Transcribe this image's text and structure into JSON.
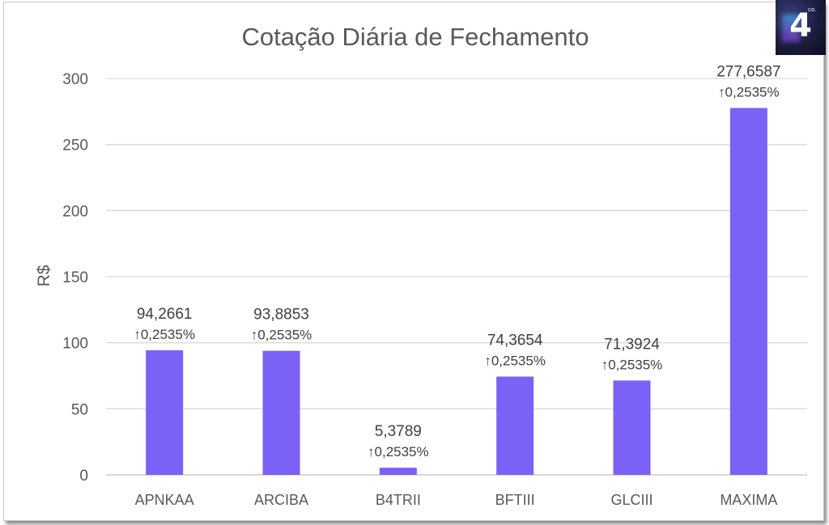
{
  "logo": {
    "digit": "4",
    "small": "co."
  },
  "chart_data": {
    "type": "bar",
    "title": "Cotação Diária de Fechamento",
    "ylabel": "R$",
    "xlabel": "",
    "ylim": [
      0,
      300
    ],
    "yticks": [
      "0",
      "50",
      "100",
      "150",
      "200",
      "250",
      "300"
    ],
    "grid": true,
    "bar_color": "#7b61f5",
    "categories": [
      "APNKAA",
      "ARCIBA",
      "B4TRII",
      "BFTIII",
      "GLCIII",
      "MAXIMA"
    ],
    "values": [
      94.2661,
      93.8853,
      5.3789,
      74.3654,
      71.3924,
      277.6587
    ],
    "value_labels": [
      "94,2661",
      "93,8853",
      "5,3789",
      "74,3654",
      "71,3924",
      "277,6587"
    ],
    "change_labels": [
      "↑0,2535%",
      "↑0,2535%",
      "↑0,2535%",
      "↑0,2535%",
      "↑0,2535%",
      "↑0,2535%"
    ]
  }
}
